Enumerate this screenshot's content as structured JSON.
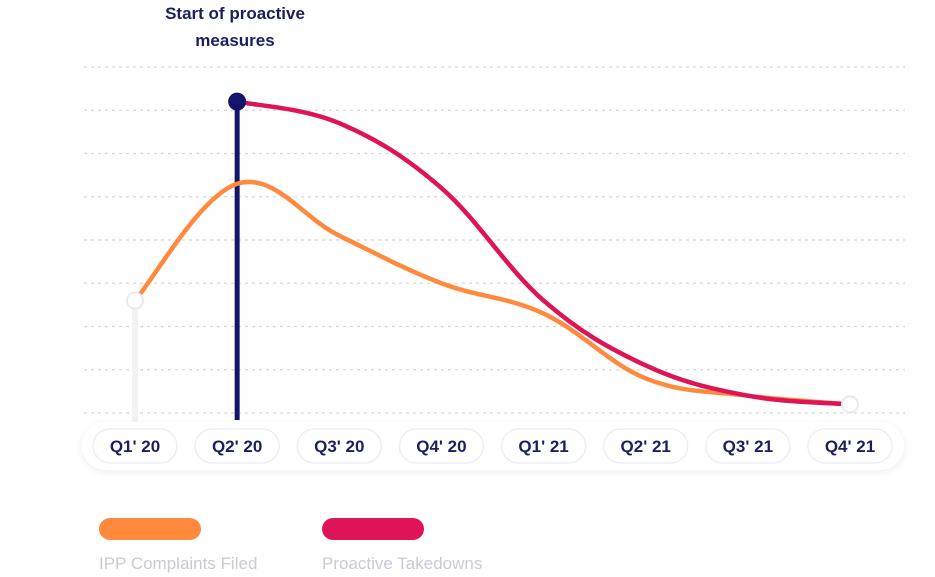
{
  "chart_data": {
    "type": "line",
    "categories": [
      "Q1' 20",
      "Q2' 20",
      "Q3' 20",
      "Q4' 20",
      "Q1' 21",
      "Q2' 21",
      "Q3' 21",
      "Q4' 21"
    ],
    "series": [
      {
        "name": "IPP Complaints Filed",
        "color": "#ff8a3d",
        "values": [
          2.6,
          5.3,
          4.1,
          3.0,
          2.3,
          0.8,
          0.4,
          0.2
        ]
      },
      {
        "name": "Proactive Takedowns",
        "color": "#de1457",
        "values": [
          null,
          7.2,
          6.7,
          5.2,
          2.6,
          1.1,
          0.4,
          0.2
        ]
      }
    ],
    "ylim": [
      0,
      8
    ],
    "grid": true,
    "annotation": {
      "category": "Q2' 20",
      "line1": "Start of proactive",
      "line2": "measures",
      "color": "#15136b"
    },
    "legend_placement": "bottom-left"
  }
}
